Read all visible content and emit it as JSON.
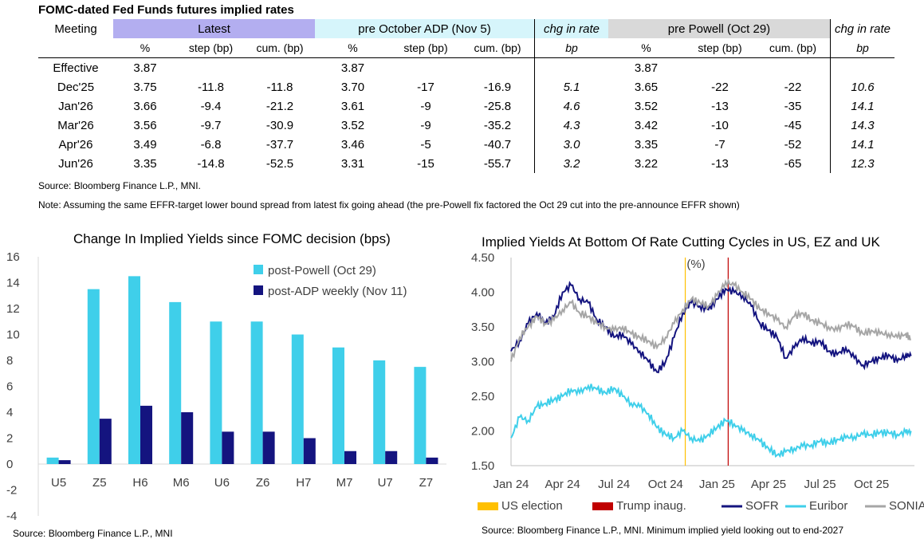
{
  "table": {
    "title": "FOMC-dated Fed Funds futures implied rates",
    "group_headers": {
      "meeting": "Meeting",
      "latest": "Latest",
      "pre_adp": "pre October ADP (Nov 5)",
      "chg1": "chg in rate",
      "pre_powell": "pre Powell (Oct 29)",
      "chg2": "chg in rate"
    },
    "sub_headers": {
      "pct": "%",
      "step": "step (bp)",
      "cum": "cum. (bp)",
      "bp": "bp"
    },
    "rows": [
      {
        "meeting": "Effective",
        "l_pct": "3.87",
        "l_step": "",
        "l_cum": "",
        "a_pct": "3.87",
        "a_step": "",
        "a_cum": "",
        "chg1": "",
        "p_pct": "3.87",
        "p_step": "",
        "p_cum": "",
        "chg2": ""
      },
      {
        "meeting": "Dec'25",
        "l_pct": "3.75",
        "l_step": "-11.8",
        "l_cum": "-11.8",
        "a_pct": "3.70",
        "a_step": "-17",
        "a_cum": "-16.9",
        "chg1": "5.1",
        "p_pct": "3.65",
        "p_step": "-22",
        "p_cum": "-22",
        "chg2": "10.6"
      },
      {
        "meeting": "Jan'26",
        "l_pct": "3.66",
        "l_step": "-9.4",
        "l_cum": "-21.2",
        "a_pct": "3.61",
        "a_step": "-9",
        "a_cum": "-25.8",
        "chg1": "4.6",
        "p_pct": "3.52",
        "p_step": "-13",
        "p_cum": "-35",
        "chg2": "14.1"
      },
      {
        "meeting": "Mar'26",
        "l_pct": "3.56",
        "l_step": "-9.7",
        "l_cum": "-30.9",
        "a_pct": "3.52",
        "a_step": "-9",
        "a_cum": "-35.2",
        "chg1": "4.3",
        "p_pct": "3.42",
        "p_step": "-10",
        "p_cum": "-45",
        "chg2": "14.3"
      },
      {
        "meeting": "Apr'26",
        "l_pct": "3.49",
        "l_step": "-6.8",
        "l_cum": "-37.7",
        "a_pct": "3.46",
        "a_step": "-5",
        "a_cum": "-40.7",
        "chg1": "3.0",
        "p_pct": "3.35",
        "p_step": "-7",
        "p_cum": "-52",
        "chg2": "14.1"
      },
      {
        "meeting": "Jun'26",
        "l_pct": "3.35",
        "l_step": "-14.8",
        "l_cum": "-52.5",
        "a_pct": "3.31",
        "a_step": "-15",
        "a_cum": "-55.7",
        "chg1": "3.2",
        "p_pct": "3.22",
        "p_step": "-13",
        "p_cum": "-65",
        "chg2": "12.3"
      }
    ],
    "source": "Source: Bloomberg Finance L.P., MNI.",
    "note": "Note: Assuming the same  EFFR-target lower bound spread from latest fix going ahead (the pre-Powell fix factored the Oct 29 cut into the pre-announce EFFR shown)"
  },
  "chart_data": [
    {
      "type": "bar",
      "title": "Change In Implied Yields since FOMC decision (bps)",
      "categories": [
        "U5",
        "Z5",
        "H6",
        "M6",
        "U6",
        "Z6",
        "H7",
        "M7",
        "U7",
        "Z7"
      ],
      "series": [
        {
          "name": "post-Powell (Oct 29)",
          "color": "#3fcfea",
          "values": [
            0.5,
            13.5,
            14.5,
            12.5,
            11,
            11,
            10,
            9,
            8,
            7.5
          ]
        },
        {
          "name": "post-ADP weekly (Nov 11)",
          "color": "#14147f",
          "values": [
            0.3,
            3.5,
            4.5,
            4,
            2.5,
            2.5,
            2,
            1,
            1,
            0.5
          ]
        }
      ],
      "ylim": [
        -4,
        16
      ],
      "yticks": [
        -4,
        -2,
        0,
        2,
        4,
        6,
        8,
        10,
        12,
        14,
        16
      ],
      "legend": "top-right",
      "source": "Source: Bloomberg Finance L.P., MNI"
    },
    {
      "type": "line",
      "title": "Implied Yields At Bottom Of Rate Cutting Cycles in US, EZ and UK",
      "ylabel": "(%)",
      "ylim": [
        1.5,
        4.5
      ],
      "yticks": [
        "1.50",
        "2.00",
        "2.50",
        "3.00",
        "3.50",
        "4.00",
        "4.50"
      ],
      "xticks": [
        "Jan 24",
        "Apr 24",
        "Jul 24",
        "Oct 24",
        "Jan 25",
        "Apr 25",
        "Jul 25",
        "Oct 25"
      ],
      "x_range_months": [
        0,
        23.5
      ],
      "events": [
        {
          "name": "US election",
          "month": 10.15,
          "color": "#ffc000"
        },
        {
          "name": "Trump inaug.",
          "month": 12.65,
          "color": "#c00000"
        }
      ],
      "series": [
        {
          "name": "SOFR",
          "color": "#14147f",
          "x": [
            0,
            0.5,
            1,
            1.5,
            2,
            2.5,
            3,
            3.5,
            4,
            4.5,
            5,
            5.5,
            6,
            6.5,
            7,
            7.5,
            8,
            8.5,
            9,
            9.5,
            10,
            10.5,
            11,
            11.5,
            12,
            12.5,
            13,
            13.5,
            14,
            14.5,
            15,
            15.5,
            16,
            16.5,
            17,
            17.5,
            18,
            18.5,
            19,
            19.5,
            20,
            20.5,
            21,
            21.5,
            22,
            22.5,
            23,
            23.3
          ],
          "values": [
            3.15,
            3.3,
            3.55,
            3.7,
            3.55,
            3.65,
            4.0,
            4.1,
            3.9,
            3.85,
            3.6,
            3.5,
            3.35,
            3.4,
            3.25,
            3.15,
            3.0,
            2.85,
            3.0,
            3.35,
            3.7,
            3.85,
            3.8,
            3.75,
            3.9,
            4.05,
            4.0,
            3.95,
            3.8,
            3.55,
            3.45,
            3.35,
            3.05,
            3.2,
            3.35,
            3.25,
            3.3,
            3.15,
            3.1,
            3.2,
            3.05,
            2.95,
            3.0,
            3.05,
            3.1,
            3.0,
            3.1,
            3.08
          ]
        },
        {
          "name": "Euribor",
          "color": "#3fcfea",
          "x": [
            0,
            0.5,
            1,
            1.5,
            2,
            2.5,
            3,
            3.5,
            4,
            4.5,
            5,
            5.5,
            6,
            6.5,
            7,
            7.5,
            8,
            8.5,
            9,
            9.5,
            10,
            10.5,
            11,
            11.5,
            12,
            12.5,
            13,
            13.5,
            14,
            14.5,
            15,
            15.5,
            16,
            16.5,
            17,
            17.5,
            18,
            18.5,
            19,
            19.5,
            20,
            20.5,
            21,
            21.5,
            22,
            22.5,
            23,
            23.3
          ],
          "values": [
            1.9,
            2.2,
            2.15,
            2.35,
            2.4,
            2.45,
            2.5,
            2.6,
            2.55,
            2.65,
            2.6,
            2.55,
            2.62,
            2.5,
            2.4,
            2.35,
            2.25,
            2.05,
            1.95,
            1.9,
            2.0,
            1.9,
            1.85,
            1.95,
            2.05,
            2.15,
            2.1,
            2.0,
            1.95,
            1.85,
            1.75,
            1.65,
            1.7,
            1.75,
            1.78,
            1.8,
            1.85,
            1.82,
            1.88,
            1.9,
            1.92,
            1.95,
            1.95,
            1.98,
            1.97,
            1.95,
            1.98,
            2.0
          ]
        },
        {
          "name": "SONIA",
          "color": "#a6a6a6",
          "x": [
            0,
            0.5,
            1,
            1.5,
            2,
            2.5,
            3,
            3.5,
            4,
            4.5,
            5,
            5.5,
            6,
            6.5,
            7,
            7.5,
            8,
            8.5,
            9,
            9.5,
            10,
            10.5,
            11,
            11.5,
            12,
            12.5,
            13,
            13.5,
            14,
            14.5,
            15,
            15.5,
            16,
            16.5,
            17,
            17.5,
            18,
            18.5,
            19,
            19.5,
            20,
            20.5,
            21,
            21.5,
            22,
            22.5,
            23,
            23.3
          ],
          "values": [
            3.0,
            3.35,
            3.5,
            3.65,
            3.55,
            3.6,
            3.75,
            3.85,
            3.7,
            3.65,
            3.55,
            3.5,
            3.45,
            3.5,
            3.4,
            3.35,
            3.3,
            3.2,
            3.35,
            3.55,
            3.75,
            3.9,
            3.85,
            3.8,
            3.95,
            4.15,
            4.1,
            4.0,
            3.9,
            3.75,
            3.7,
            3.6,
            3.5,
            3.65,
            3.7,
            3.6,
            3.55,
            3.5,
            3.45,
            3.55,
            3.5,
            3.4,
            3.45,
            3.4,
            3.4,
            3.35,
            3.4,
            3.32
          ]
        }
      ],
      "source": "Source: Bloomberg Finance L.P., MNI. Minimum implied yield looking out to end-2027"
    }
  ]
}
